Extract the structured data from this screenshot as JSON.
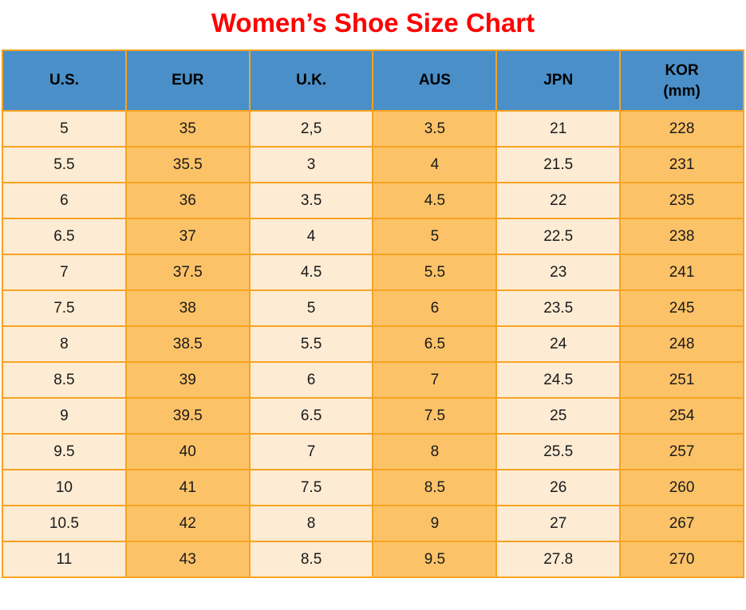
{
  "title": "Women’s Shoe Size Chart",
  "colors": {
    "title_red": "#fe0000",
    "header_blue": "#4a8fc8",
    "border_orange": "#f7a321",
    "cell_cream": "#fdebd3",
    "cell_orange": "#fcc268",
    "header_text": "#000000",
    "cell_text": "#1a1a1a",
    "page_background": "#ffffff"
  },
  "chart_data": {
    "type": "table",
    "title": "Women’s Shoe Size Chart",
    "columns": [
      {
        "key": "us",
        "label": "U.S.",
        "sub": ""
      },
      {
        "key": "eur",
        "label": "EUR",
        "sub": ""
      },
      {
        "key": "uk",
        "label": "U.K.",
        "sub": ""
      },
      {
        "key": "aus",
        "label": "AUS",
        "sub": ""
      },
      {
        "key": "jpn",
        "label": "JPN",
        "sub": ""
      },
      {
        "key": "kor",
        "label": "KOR",
        "sub": "(mm)"
      }
    ],
    "rows": [
      [
        "5",
        "35",
        "2,5",
        "3.5",
        "21",
        "228"
      ],
      [
        "5.5",
        "35.5",
        "3",
        "4",
        "21.5",
        "231"
      ],
      [
        "6",
        "36",
        "3.5",
        "4.5",
        "22",
        "235"
      ],
      [
        "6.5",
        "37",
        "4",
        "5",
        "22.5",
        "238"
      ],
      [
        "7",
        "37.5",
        "4.5",
        "5.5",
        "23",
        "241"
      ],
      [
        "7.5",
        "38",
        "5",
        "6",
        "23.5",
        "245"
      ],
      [
        "8",
        "38.5",
        "5.5",
        "6.5",
        "24",
        "248"
      ],
      [
        "8.5",
        "39",
        "6",
        "7",
        "24.5",
        "251"
      ],
      [
        "9",
        "39.5",
        "6.5",
        "7.5",
        "25",
        "254"
      ],
      [
        "9.5",
        "40",
        "7",
        "8",
        "25.5",
        "257"
      ],
      [
        "10",
        "41",
        "7.5",
        "8.5",
        "26",
        "260"
      ],
      [
        "10.5",
        "42",
        "8",
        "9",
        "27",
        "267"
      ],
      [
        "11",
        "43",
        "8.5",
        "9.5",
        "27.8",
        "270"
      ]
    ]
  }
}
